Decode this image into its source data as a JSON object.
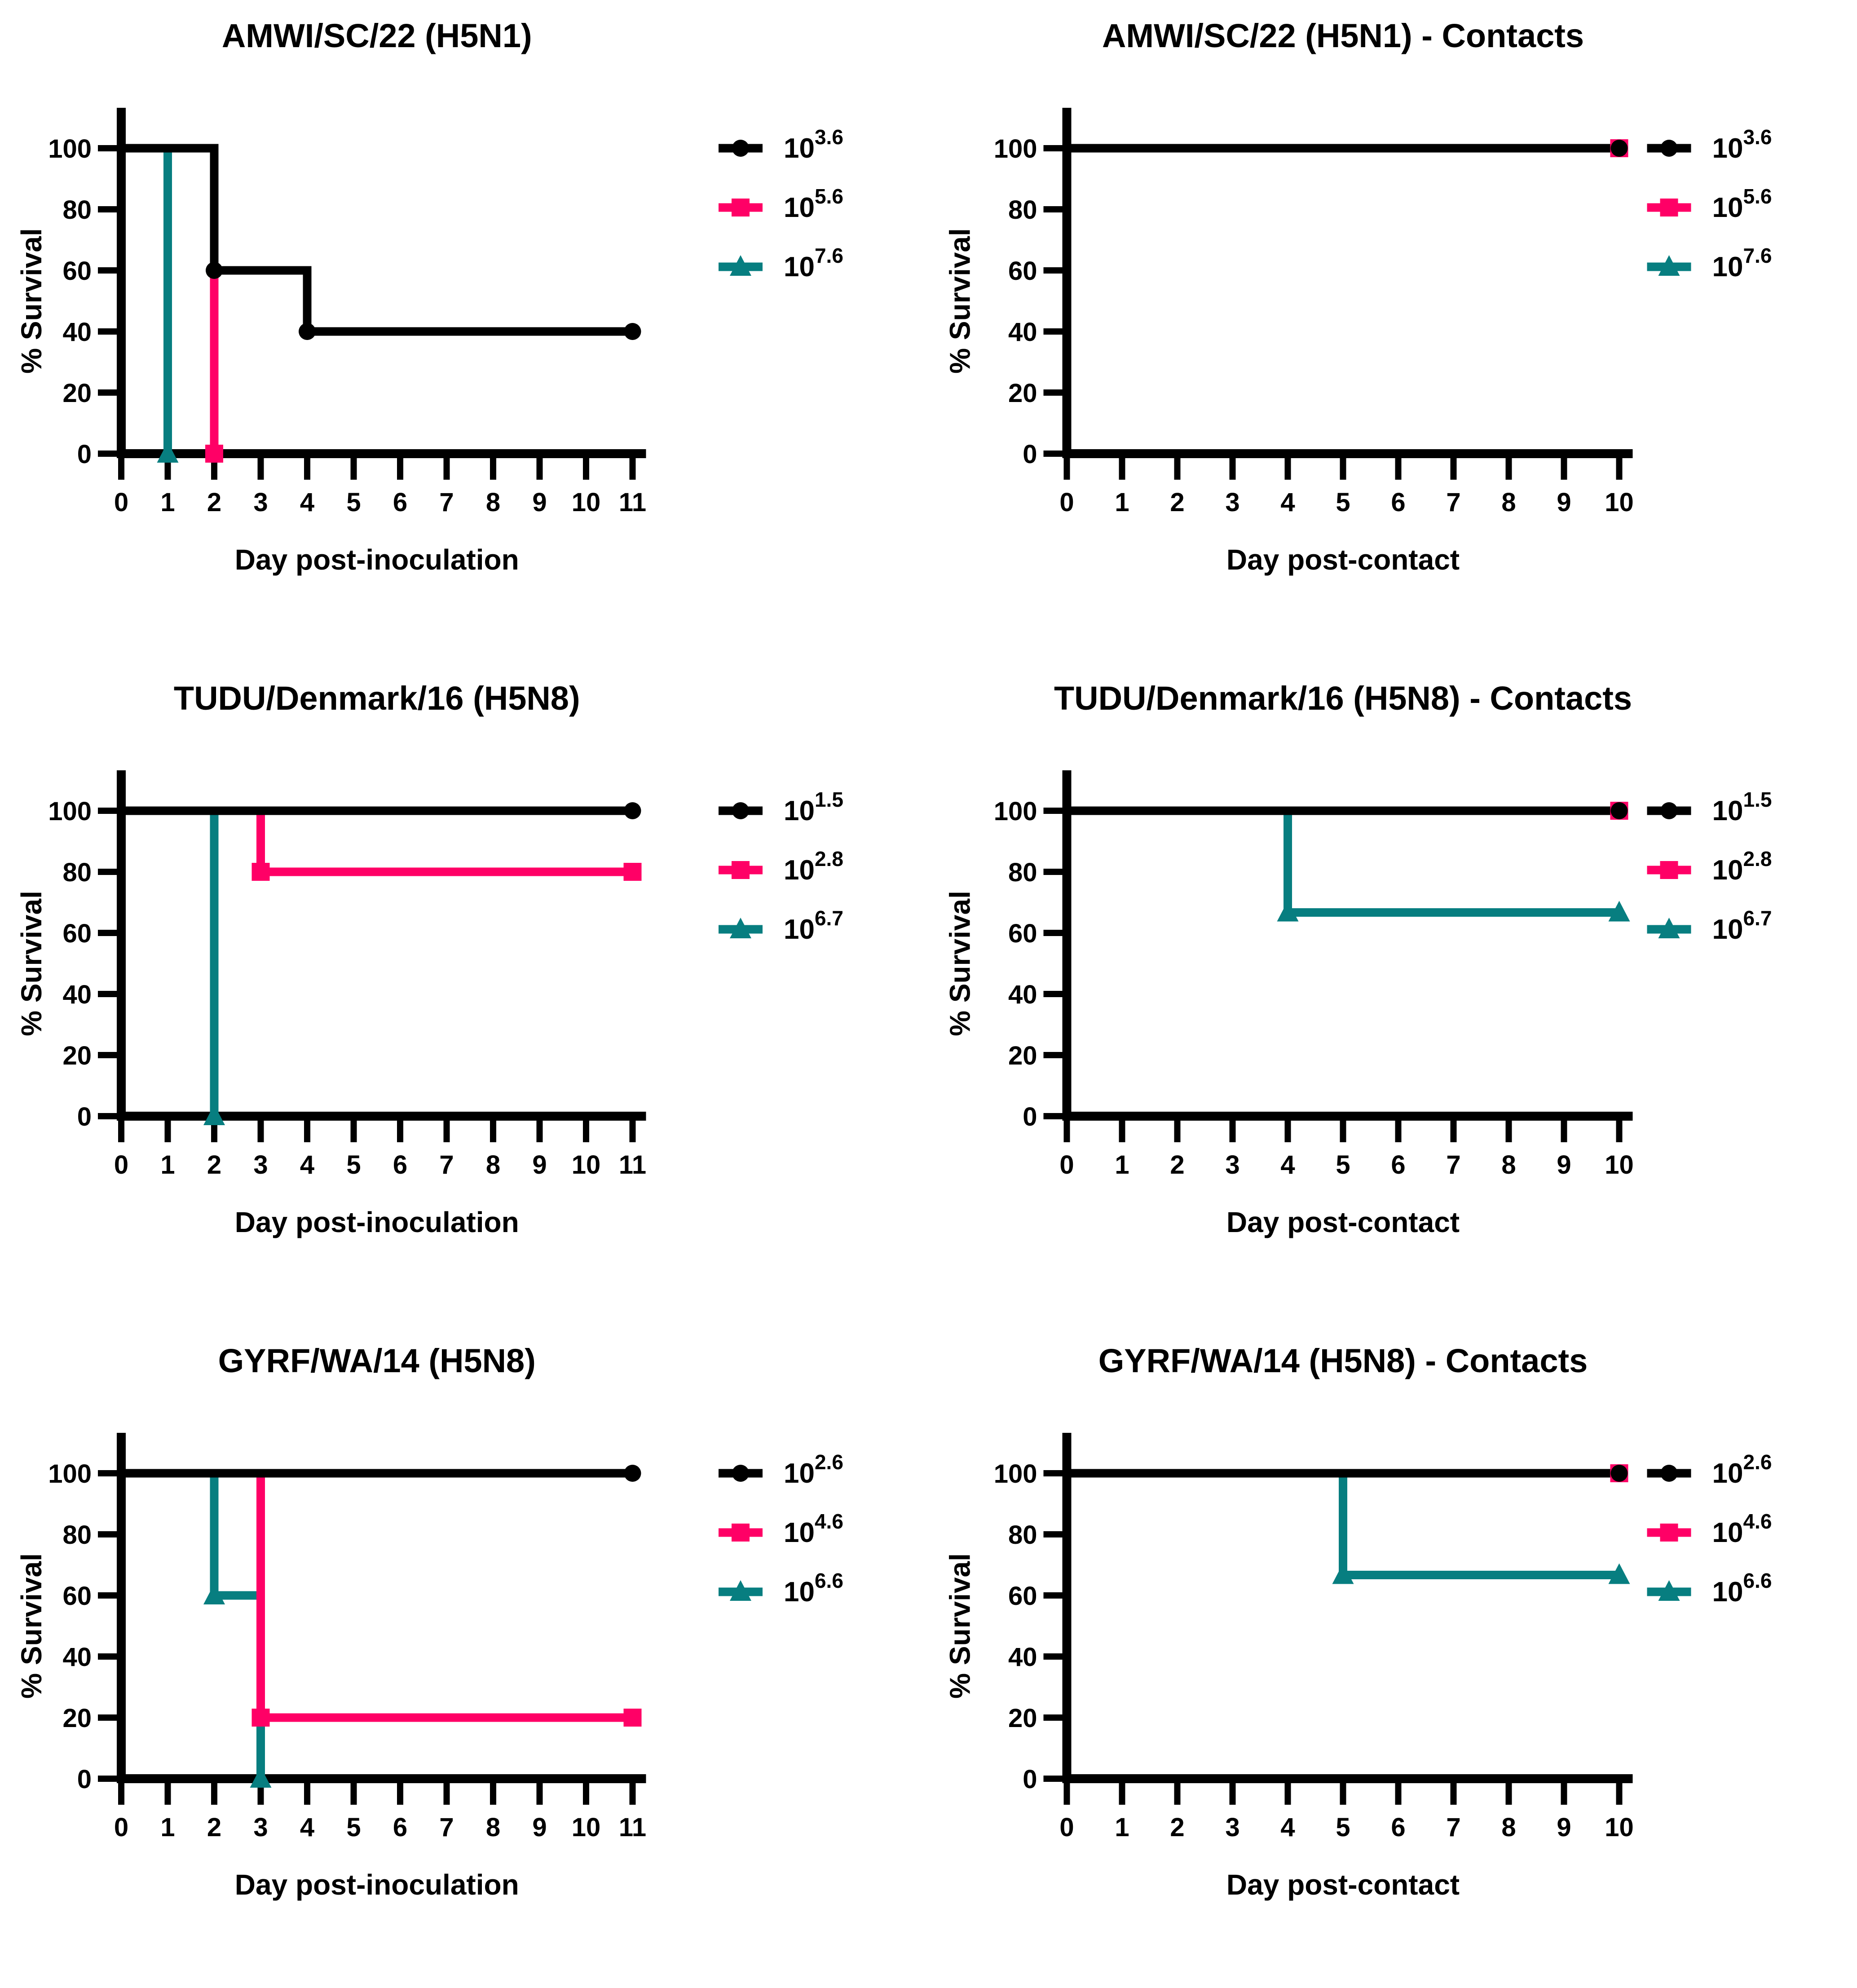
{
  "figure": {
    "background": "#FFFFFF",
    "axis_color": "#000000",
    "series_colors": {
      "low_dose": "#000000",
      "mid_dose": "#FF0066",
      "high_dose": "#077E80"
    },
    "marker_shapes": {
      "low_dose": "circle",
      "mid_dose": "square",
      "high_dose": "triangle"
    }
  },
  "chart_data": [
    {
      "type": "line",
      "subtype": "kaplan-meier-step",
      "title": "AMWI/SC/22 (H5N1)",
      "xlabel": "Day post-inoculation",
      "ylabel": "% Survival",
      "xlim": [
        0,
        11
      ],
      "ylim": [
        0,
        100
      ],
      "xticks": [
        0,
        1,
        2,
        3,
        4,
        5,
        6,
        7,
        8,
        9,
        10,
        11
      ],
      "yticks": [
        0,
        20,
        40,
        60,
        80,
        100
      ],
      "grid": false,
      "legend_position": "right",
      "series": [
        {
          "name": "10^3.6",
          "base": "10",
          "exponent": "3.6",
          "color": "#000000",
          "marker": "circle",
          "points": [
            [
              0,
              100
            ],
            [
              2,
              100
            ],
            [
              2,
              60
            ],
            [
              4,
              60
            ],
            [
              4,
              40
            ],
            [
              11,
              40
            ]
          ],
          "marker_points": [
            [
              2,
              60
            ],
            [
              4,
              40
            ],
            [
              11,
              40
            ]
          ]
        },
        {
          "name": "10^5.6",
          "base": "10",
          "exponent": "5.6",
          "color": "#FF0066",
          "marker": "square",
          "points": [
            [
              0,
              100
            ],
            [
              2,
              100
            ],
            [
              2,
              0
            ]
          ],
          "marker_points": [
            [
              2,
              0
            ]
          ]
        },
        {
          "name": "10^7.6",
          "base": "10",
          "exponent": "7.6",
          "color": "#077E80",
          "marker": "triangle",
          "points": [
            [
              0,
              100
            ],
            [
              1,
              100
            ],
            [
              1,
              0
            ]
          ],
          "marker_points": [
            [
              1,
              0
            ]
          ]
        }
      ]
    },
    {
      "type": "line",
      "subtype": "kaplan-meier-step",
      "title": "AMWI/SC/22 (H5N1) - Contacts",
      "xlabel": "Day post-contact",
      "ylabel": "% Survival",
      "xlim": [
        0,
        10
      ],
      "ylim": [
        0,
        100
      ],
      "xticks": [
        0,
        1,
        2,
        3,
        4,
        5,
        6,
        7,
        8,
        9,
        10
      ],
      "yticks": [
        0,
        20,
        40,
        60,
        80,
        100
      ],
      "grid": false,
      "legend_position": "right",
      "series": [
        {
          "name": "10^3.6",
          "base": "10",
          "exponent": "3.6",
          "color": "#000000",
          "marker": "circle",
          "points": [
            [
              0,
              100
            ],
            [
              10,
              100
            ]
          ],
          "marker_points": [
            [
              10,
              100
            ]
          ]
        },
        {
          "name": "10^5.6",
          "base": "10",
          "exponent": "5.6",
          "color": "#FF0066",
          "marker": "square",
          "points": [
            [
              0,
              100
            ],
            [
              10,
              100
            ]
          ],
          "marker_points": [
            [
              10,
              100
            ]
          ]
        },
        {
          "name": "10^7.6",
          "base": "10",
          "exponent": "7.6",
          "color": "#077E80",
          "marker": "triangle",
          "points": [
            [
              0,
              100
            ],
            [
              10,
              100
            ]
          ],
          "marker_points": []
        }
      ]
    },
    {
      "type": "line",
      "subtype": "kaplan-meier-step",
      "title": "TUDU/Denmark/16 (H5N8)",
      "xlabel": "Day post-inoculation",
      "ylabel": "% Survival",
      "xlim": [
        0,
        11
      ],
      "ylim": [
        0,
        100
      ],
      "xticks": [
        0,
        1,
        2,
        3,
        4,
        5,
        6,
        7,
        8,
        9,
        10,
        11
      ],
      "yticks": [
        0,
        20,
        40,
        60,
        80,
        100
      ],
      "grid": false,
      "legend_position": "right",
      "series": [
        {
          "name": "10^1.5",
          "base": "10",
          "exponent": "1.5",
          "color": "#000000",
          "marker": "circle",
          "points": [
            [
              0,
              100
            ],
            [
              11,
              100
            ]
          ],
          "marker_points": [
            [
              11,
              100
            ]
          ]
        },
        {
          "name": "10^2.8",
          "base": "10",
          "exponent": "2.8",
          "color": "#FF0066",
          "marker": "square",
          "points": [
            [
              0,
              100
            ],
            [
              3,
              100
            ],
            [
              3,
              80
            ],
            [
              11,
              80
            ]
          ],
          "marker_points": [
            [
              3,
              80
            ],
            [
              11,
              80
            ]
          ]
        },
        {
          "name": "10^6.7",
          "base": "10",
          "exponent": "6.7",
          "color": "#077E80",
          "marker": "triangle",
          "points": [
            [
              0,
              100
            ],
            [
              2,
              100
            ],
            [
              2,
              0
            ]
          ],
          "marker_points": [
            [
              2,
              0
            ]
          ]
        }
      ]
    },
    {
      "type": "line",
      "subtype": "kaplan-meier-step",
      "title": "TUDU/Denmark/16 (H5N8) - Contacts",
      "xlabel": "Day post-contact",
      "ylabel": "% Survival",
      "xlim": [
        0,
        10
      ],
      "ylim": [
        0,
        100
      ],
      "xticks": [
        0,
        1,
        2,
        3,
        4,
        5,
        6,
        7,
        8,
        9,
        10
      ],
      "yticks": [
        0,
        20,
        40,
        60,
        80,
        100
      ],
      "grid": false,
      "legend_position": "right",
      "series": [
        {
          "name": "10^1.5",
          "base": "10",
          "exponent": "1.5",
          "color": "#000000",
          "marker": "circle",
          "points": [
            [
              0,
              100
            ],
            [
              10,
              100
            ]
          ],
          "marker_points": [
            [
              10,
              100
            ]
          ]
        },
        {
          "name": "10^2.8",
          "base": "10",
          "exponent": "2.8",
          "color": "#FF0066",
          "marker": "square",
          "points": [
            [
              0,
              100
            ],
            [
              10,
              100
            ]
          ],
          "marker_points": [
            [
              10,
              100
            ]
          ]
        },
        {
          "name": "10^6.7",
          "base": "10",
          "exponent": "6.7",
          "color": "#077E80",
          "marker": "triangle",
          "points": [
            [
              0,
              100
            ],
            [
              4,
              100
            ],
            [
              4,
              66.7
            ],
            [
              10,
              66.7
            ]
          ],
          "marker_points": [
            [
              4,
              66.7
            ],
            [
              10,
              66.7
            ]
          ]
        }
      ]
    },
    {
      "type": "line",
      "subtype": "kaplan-meier-step",
      "title": "GYRF/WA/14 (H5N8)",
      "xlabel": "Day post-inoculation",
      "ylabel": "% Survival",
      "xlim": [
        0,
        11
      ],
      "ylim": [
        0,
        100
      ],
      "xticks": [
        0,
        1,
        2,
        3,
        4,
        5,
        6,
        7,
        8,
        9,
        10,
        11
      ],
      "yticks": [
        0,
        20,
        40,
        60,
        80,
        100
      ],
      "grid": false,
      "legend_position": "right",
      "series": [
        {
          "name": "10^2.6",
          "base": "10",
          "exponent": "2.6",
          "color": "#000000",
          "marker": "circle",
          "points": [
            [
              0,
              100
            ],
            [
              11,
              100
            ]
          ],
          "marker_points": [
            [
              11,
              100
            ]
          ]
        },
        {
          "name": "10^4.6",
          "base": "10",
          "exponent": "4.6",
          "color": "#FF0066",
          "marker": "square",
          "points": [
            [
              0,
              100
            ],
            [
              3,
              100
            ],
            [
              3,
              20
            ],
            [
              11,
              20
            ]
          ],
          "marker_points": [
            [
              3,
              20
            ],
            [
              11,
              20
            ]
          ]
        },
        {
          "name": "10^6.6",
          "base": "10",
          "exponent": "6.6",
          "color": "#077E80",
          "marker": "triangle",
          "points": [
            [
              0,
              100
            ],
            [
              2,
              100
            ],
            [
              2,
              60
            ],
            [
              3,
              60
            ],
            [
              3,
              0
            ]
          ],
          "marker_points": [
            [
              2,
              60
            ],
            [
              3,
              0
            ]
          ]
        }
      ]
    },
    {
      "type": "line",
      "subtype": "kaplan-meier-step",
      "title": "GYRF/WA/14 (H5N8) - Contacts",
      "xlabel": "Day post-contact",
      "ylabel": "% Survival",
      "xlim": [
        0,
        10
      ],
      "ylim": [
        0,
        100
      ],
      "xticks": [
        0,
        1,
        2,
        3,
        4,
        5,
        6,
        7,
        8,
        9,
        10
      ],
      "yticks": [
        0,
        20,
        40,
        60,
        80,
        100
      ],
      "grid": false,
      "legend_position": "right",
      "series": [
        {
          "name": "10^2.6",
          "base": "10",
          "exponent": "2.6",
          "color": "#000000",
          "marker": "circle",
          "points": [
            [
              0,
              100
            ],
            [
              10,
              100
            ]
          ],
          "marker_points": [
            [
              10,
              100
            ]
          ]
        },
        {
          "name": "10^4.6",
          "base": "10",
          "exponent": "4.6",
          "color": "#FF0066",
          "marker": "square",
          "points": [
            [
              0,
              100
            ],
            [
              10,
              100
            ]
          ],
          "marker_points": [
            [
              10,
              100
            ]
          ]
        },
        {
          "name": "10^6.6",
          "base": "10",
          "exponent": "6.6",
          "color": "#077E80",
          "marker": "triangle",
          "points": [
            [
              0,
              100
            ],
            [
              5,
              100
            ],
            [
              5,
              66.7
            ],
            [
              10,
              66.7
            ]
          ],
          "marker_points": [
            [
              5,
              66.7
            ],
            [
              10,
              66.7
            ]
          ]
        }
      ]
    }
  ]
}
